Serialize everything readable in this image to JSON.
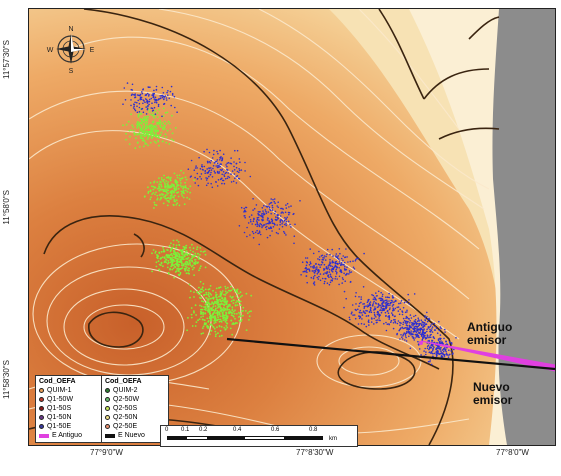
{
  "map": {
    "longitude_labels": [
      "77°9'0\"W",
      "77°8'30\"W",
      "77°8'0\"W"
    ],
    "latitude_labels": [
      "11°57'30\"S",
      "11°58'0\"S",
      "11°58'30\"S"
    ],
    "compass": {
      "n": "N",
      "s": "S",
      "e": "E",
      "w": "W"
    },
    "callouts": {
      "antiguo": [
        "Antiguo",
        "emisor"
      ],
      "nuevo": [
        "Nuevo",
        "emisor"
      ]
    },
    "colors": {
      "deep_orange": "#d9783a",
      "light_orange": "#f5d39a",
      "pale": "#faf0d2",
      "land_gray": "#8a8a8a",
      "blue_points": "#2d2fd0",
      "green_points": "#7cf23a",
      "emisor_antiguo": "#e040e0",
      "emisor_nuevo": "#111111"
    }
  },
  "legend": {
    "group1": {
      "title": "Cod_OEFA",
      "items": [
        {
          "label": "QUIM-1",
          "color": "#e8a05a"
        },
        {
          "label": "Q1-50W",
          "color": "#c0392b"
        },
        {
          "label": "Q1-50S",
          "color": "#8b1a1a"
        },
        {
          "label": "Q1-50N",
          "color": "#6a3a8a"
        },
        {
          "label": "Q1-50E",
          "color": "#3a3aa0"
        }
      ],
      "line_label": "E Antiguo",
      "line_color": "#e040e0"
    },
    "group2": {
      "title": "Cod_OEFA",
      "items": [
        {
          "label": "QUIM-2",
          "color": "#2e7d32"
        },
        {
          "label": "Q2-50W",
          "color": "#66bb6a"
        },
        {
          "label": "Q2-50S",
          "color": "#c6e85a"
        },
        {
          "label": "Q2-50N",
          "color": "#f0e08a"
        },
        {
          "label": "Q2-50E",
          "color": "#e89070"
        }
      ],
      "line_label": "E Nuevo",
      "line_color": "#111111"
    }
  },
  "scale": {
    "ticks": [
      "0",
      "0.1",
      "0.2",
      "0.4",
      "0.6",
      "0.8"
    ],
    "unit": "km"
  }
}
